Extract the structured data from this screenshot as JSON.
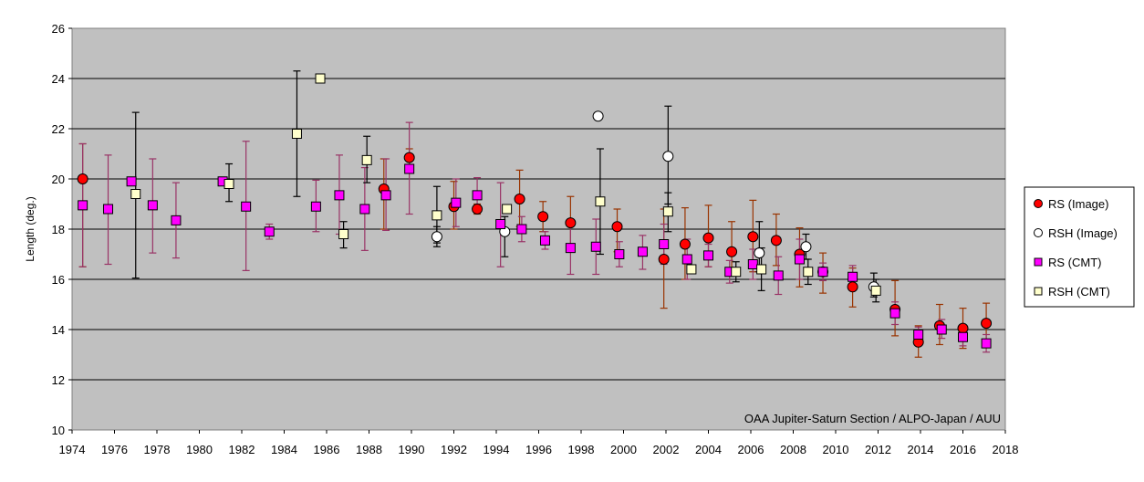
{
  "chart_data": {
    "type": "scatter",
    "title": "",
    "ylabel": "Length (deg.)",
    "xlabel": "",
    "xlim": [
      1974,
      2018
    ],
    "ylim": [
      10,
      26
    ],
    "x_ticks": [
      1974,
      1976,
      1978,
      1980,
      1982,
      1984,
      1986,
      1988,
      1990,
      1992,
      1994,
      1996,
      1998,
      2000,
      2002,
      2004,
      2006,
      2008,
      2010,
      2012,
      2014,
      2016,
      2018
    ],
    "y_ticks": [
      10,
      12,
      14,
      16,
      18,
      20,
      22,
      24,
      26
    ],
    "grid": true,
    "legend_position": "right",
    "annotation": "OAA Jupiter-Saturn Section / ALPO-Japan / AUU",
    "colors": {
      "plot_bg": "#c0c0c0",
      "rs_image": "#ff0000",
      "rsh_image": "#ffffff",
      "rs_cmt": "#ff00ff",
      "rsh_cmt": "#ffffcc",
      "rs_errbar": "#993300",
      "rs_cmt_errbar": "#993366",
      "rsh_errbar": "#000000"
    },
    "series": [
      {
        "name": "RS (Image)",
        "marker": "circle",
        "points": [
          {
            "x": 1974.5,
            "y": 20.0,
            "lo": 16.5,
            "hi": 21.4
          },
          {
            "x": 1988.7,
            "y": 19.6,
            "lo": 18.0,
            "hi": 20.8
          },
          {
            "x": 1989.9,
            "y": 20.85,
            "lo": 20.4,
            "hi": 21.2
          },
          {
            "x": 1992.0,
            "y": 18.9,
            "lo": 18.0,
            "hi": 19.9
          },
          {
            "x": 1993.1,
            "y": 18.8,
            "lo": 18.6,
            "hi": 19.0
          },
          {
            "x": 1995.1,
            "y": 19.2,
            "lo": 18.1,
            "hi": 20.35
          },
          {
            "x": 1996.2,
            "y": 18.5,
            "lo": 17.9,
            "hi": 19.1
          },
          {
            "x": 1997.5,
            "y": 18.25,
            "lo": 17.4,
            "hi": 19.3
          },
          {
            "x": 1999.7,
            "y": 18.1,
            "lo": 17.1,
            "hi": 18.8
          },
          {
            "x": 2001.9,
            "y": 16.8,
            "lo": 14.85,
            "hi": 18.8
          },
          {
            "x": 2002.9,
            "y": 17.4,
            "lo": 16.0,
            "hi": 18.85
          },
          {
            "x": 2004.0,
            "y": 17.65,
            "lo": 16.5,
            "hi": 18.95
          },
          {
            "x": 2005.1,
            "y": 17.1,
            "lo": 16.15,
            "hi": 18.3
          },
          {
            "x": 2006.1,
            "y": 17.7,
            "lo": 16.3,
            "hi": 19.15
          },
          {
            "x": 2007.2,
            "y": 17.55,
            "lo": 16.55,
            "hi": 18.6
          },
          {
            "x": 2008.3,
            "y": 17.0,
            "lo": 15.7,
            "hi": 18.05
          },
          {
            "x": 2009.4,
            "y": 16.3,
            "lo": 15.45,
            "hi": 17.05
          },
          {
            "x": 2010.8,
            "y": 15.7,
            "lo": 14.9,
            "hi": 16.45
          },
          {
            "x": 2012.8,
            "y": 14.8,
            "lo": 13.75,
            "hi": 15.95
          },
          {
            "x": 2013.9,
            "y": 13.5,
            "lo": 12.9,
            "hi": 14.15
          },
          {
            "x": 2014.9,
            "y": 14.15,
            "lo": 13.4,
            "hi": 15.0
          },
          {
            "x": 2016.0,
            "y": 14.05,
            "lo": 13.25,
            "hi": 14.85
          },
          {
            "x": 2017.1,
            "y": 14.25,
            "lo": 13.4,
            "hi": 15.05
          }
        ]
      },
      {
        "name": "RSH (Image)",
        "marker": "circle",
        "points": [
          {
            "x": 1991.2,
            "y": 17.7,
            "lo": 17.3,
            "hi": 18.1
          },
          {
            "x": 1994.4,
            "y": 17.9,
            "lo": 16.9,
            "hi": 18.5
          },
          {
            "x": 1998.8,
            "y": 22.5,
            "lo": 22.5,
            "hi": 22.5
          },
          {
            "x": 2002.1,
            "y": 20.9,
            "lo": 19.0,
            "hi": 22.9
          },
          {
            "x": 2006.4,
            "y": 17.05,
            "lo": 16.3,
            "hi": 18.3
          },
          {
            "x": 2008.6,
            "y": 17.3,
            "lo": 16.8,
            "hi": 17.8
          },
          {
            "x": 2011.8,
            "y": 15.7,
            "lo": 15.3,
            "hi": 16.25
          }
        ]
      },
      {
        "name": "RS (CMT)",
        "marker": "square",
        "points": [
          {
            "x": 1974.5,
            "y": 18.95,
            "lo": 16.5,
            "hi": 21.4
          },
          {
            "x": 1975.7,
            "y": 18.8,
            "lo": 16.6,
            "hi": 20.95
          },
          {
            "x": 1976.8,
            "y": 19.9,
            "lo": 19.9,
            "hi": 19.9
          },
          {
            "x": 1977.8,
            "y": 18.95,
            "lo": 17.05,
            "hi": 20.8
          },
          {
            "x": 1978.9,
            "y": 18.35,
            "lo": 16.85,
            "hi": 19.85
          },
          {
            "x": 1981.1,
            "y": 19.9,
            "lo": 19.9,
            "hi": 19.9
          },
          {
            "x": 1982.2,
            "y": 18.9,
            "lo": 16.35,
            "hi": 21.5
          },
          {
            "x": 1983.3,
            "y": 17.9,
            "lo": 17.6,
            "hi": 18.2
          },
          {
            "x": 1985.5,
            "y": 18.9,
            "lo": 17.9,
            "hi": 19.95
          },
          {
            "x": 1986.6,
            "y": 19.35,
            "lo": 17.8,
            "hi": 20.95
          },
          {
            "x": 1987.8,
            "y": 18.8,
            "lo": 17.15,
            "hi": 20.45
          },
          {
            "x": 1988.8,
            "y": 19.35,
            "lo": 17.95,
            "hi": 20.8
          },
          {
            "x": 1989.9,
            "y": 20.4,
            "lo": 18.6,
            "hi": 22.25
          },
          {
            "x": 1992.1,
            "y": 19.05,
            "lo": 18.1,
            "hi": 20.0
          },
          {
            "x": 1993.1,
            "y": 19.35,
            "lo": 18.65,
            "hi": 20.05
          },
          {
            "x": 1994.2,
            "y": 18.2,
            "lo": 16.5,
            "hi": 19.85
          },
          {
            "x": 1995.2,
            "y": 18.0,
            "lo": 17.5,
            "hi": 18.5
          },
          {
            "x": 1996.3,
            "y": 17.55,
            "lo": 17.2,
            "hi": 17.9
          },
          {
            "x": 1997.5,
            "y": 17.25,
            "lo": 16.2,
            "hi": 18.3
          },
          {
            "x": 1998.7,
            "y": 17.3,
            "lo": 16.2,
            "hi": 18.4
          },
          {
            "x": 1999.8,
            "y": 17.0,
            "lo": 16.5,
            "hi": 17.5
          },
          {
            "x": 2000.9,
            "y": 17.1,
            "lo": 16.4,
            "hi": 17.75
          },
          {
            "x": 2001.9,
            "y": 17.4,
            "lo": 16.6,
            "hi": 18.2
          },
          {
            "x": 2003.0,
            "y": 16.8,
            "lo": 16.0,
            "hi": 17.6
          },
          {
            "x": 2004.0,
            "y": 16.95,
            "lo": 16.5,
            "hi": 17.4
          },
          {
            "x": 2005.0,
            "y": 16.3,
            "lo": 15.85,
            "hi": 16.75
          },
          {
            "x": 2006.1,
            "y": 16.6,
            "lo": 16.0,
            "hi": 17.2
          },
          {
            "x": 2007.3,
            "y": 16.15,
            "lo": 15.4,
            "hi": 16.9
          },
          {
            "x": 2008.3,
            "y": 16.8,
            "lo": 16.0,
            "hi": 17.6
          },
          {
            "x": 2009.4,
            "y": 16.3,
            "lo": 15.95,
            "hi": 16.65
          },
          {
            "x": 2010.8,
            "y": 16.1,
            "lo": 15.6,
            "hi": 16.55
          },
          {
            "x": 2012.8,
            "y": 14.65,
            "lo": 14.2,
            "hi": 15.1
          },
          {
            "x": 2013.9,
            "y": 13.8,
            "lo": 13.5,
            "hi": 14.1
          },
          {
            "x": 2015.0,
            "y": 14.0,
            "lo": 13.65,
            "hi": 14.4
          },
          {
            "x": 2016.0,
            "y": 13.7,
            "lo": 13.35,
            "hi": 14.1
          },
          {
            "x": 2017.1,
            "y": 13.45,
            "lo": 13.1,
            "hi": 13.8
          }
        ]
      },
      {
        "name": "RSH (CMT)",
        "marker": "square",
        "points": [
          {
            "x": 1977.0,
            "y": 19.4,
            "lo": 16.05,
            "hi": 22.65
          },
          {
            "x": 1981.4,
            "y": 19.8,
            "lo": 19.1,
            "hi": 20.6
          },
          {
            "x": 1984.6,
            "y": 21.8,
            "lo": 19.3,
            "hi": 24.3
          },
          {
            "x": 1985.7,
            "y": 24.0,
            "lo": 24.0,
            "hi": 24.0
          },
          {
            "x": 1986.8,
            "y": 17.8,
            "lo": 17.25,
            "hi": 18.3
          },
          {
            "x": 1987.9,
            "y": 20.75,
            "lo": 19.85,
            "hi": 21.7
          },
          {
            "x": 1991.2,
            "y": 18.55,
            "lo": 17.45,
            "hi": 19.7
          },
          {
            "x": 1994.5,
            "y": 18.8,
            "lo": 18.8,
            "hi": 18.8
          },
          {
            "x": 1998.9,
            "y": 19.1,
            "lo": 17.0,
            "hi": 21.2
          },
          {
            "x": 2002.1,
            "y": 18.7,
            "lo": 17.9,
            "hi": 19.45
          },
          {
            "x": 2003.2,
            "y": 16.4,
            "lo": 16.4,
            "hi": 16.4
          },
          {
            "x": 2005.3,
            "y": 16.3,
            "lo": 15.9,
            "hi": 16.7
          },
          {
            "x": 2006.5,
            "y": 16.4,
            "lo": 15.55,
            "hi": 17.25
          },
          {
            "x": 2008.7,
            "y": 16.3,
            "lo": 15.8,
            "hi": 16.8
          },
          {
            "x": 2011.9,
            "y": 15.55,
            "lo": 15.1,
            "hi": 16.0
          }
        ]
      }
    ]
  }
}
